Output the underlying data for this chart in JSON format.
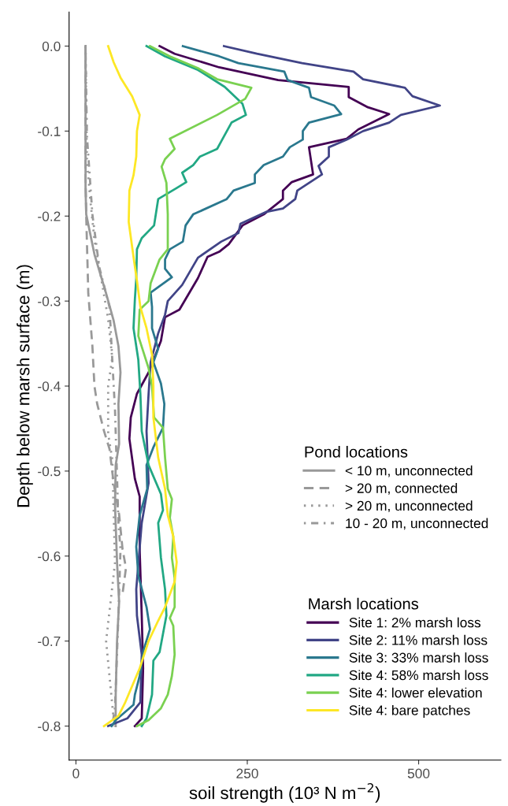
{
  "chart_data": {
    "type": "line",
    "xlabel": "soil strength (10³ N m$^{−2}$)",
    "ylabel": "Depth below marsh surface (m)",
    "legend_title": [
      "Pond locations",
      "Marsh locations"
    ],
    "legend": "bottom right",
    "grid": false,
    "marker": "none",
    "xlim": [
      -10,
      620
    ],
    "xticks": [
      0,
      250,
      500
    ],
    "ylim": [
      -0.84,
      0.04
    ],
    "yticks": [
      {
        "value": 0,
        "label": "0.0"
      },
      {
        "value": -0.1,
        "label": "-0.1"
      },
      {
        "value": -0.2,
        "label": "-0.2"
      },
      {
        "value": -0.3,
        "label": "-0.3"
      },
      {
        "value": -0.4,
        "label": "-0.4"
      },
      {
        "value": -0.5,
        "label": "-0.5"
      },
      {
        "value": -0.6,
        "label": "-0.6"
      },
      {
        "value": -0.7,
        "label": "-0.7"
      },
      {
        "value": -0.8,
        "label": "-0.8"
      }
    ],
    "series": [
      {
        "name": "< 10 m, unconnected",
        "color": "#999999",
        "line_style": "solid",
        "x": [
          14,
          14,
          14,
          15,
          27,
          44,
          55,
          62,
          65,
          62,
          63,
          58,
          57,
          60,
          63,
          60,
          58,
          58
        ],
        "values": [
          0,
          -0.075,
          -0.167,
          -0.198,
          -0.245,
          -0.291,
          -0.323,
          -0.353,
          -0.384,
          -0.421,
          -0.468,
          -0.493,
          -0.54,
          -0.608,
          -0.654,
          -0.7,
          -0.763,
          -0.8
        ]
      },
      {
        "name": "> 20 m, connected",
        "color": "#999999",
        "line_style": "dashed",
        "x": [
          14,
          14,
          15,
          17,
          18,
          24,
          27,
          31,
          41,
          49,
          55,
          63,
          68,
          73,
          68
        ],
        "values": [
          0,
          -0.15,
          -0.2,
          -0.26,
          -0.291,
          -0.353,
          -0.4,
          -0.421,
          -0.453,
          -0.474,
          -0.514,
          -0.551,
          -0.592,
          -0.614,
          -0.644
        ]
      },
      {
        "name": "> 20 m, unconnected",
        "color": "#999999",
        "line_style": "dotted",
        "x": [
          14,
          16,
          21,
          27,
          37,
          47,
          53,
          47,
          47,
          47,
          53,
          57,
          44,
          50,
          56
        ],
        "values": [
          0,
          -0.135,
          -0.181,
          -0.228,
          -0.274,
          -0.321,
          -0.367,
          -0.4,
          -0.428,
          -0.456,
          -0.486,
          -0.608,
          -0.7,
          -0.75,
          -0.8
        ]
      },
      {
        "name": "10 - 20 m, unconnected",
        "color": "#999999",
        "line_style": "dashdot",
        "x": [
          14,
          16,
          24,
          34,
          49,
          53,
          57,
          62,
          65,
          62,
          57,
          53
        ],
        "values": [
          0,
          -0.105,
          -0.198,
          -0.26,
          -0.307,
          -0.369,
          -0.428,
          -0.561,
          -0.592,
          -0.67,
          -0.778,
          -0.8
        ]
      },
      {
        "name": "Site 1: 2% marsh loss",
        "color": "#440154",
        "x": [
          122,
          144,
          209,
          295,
          398,
          398,
          426,
          457,
          412,
          395,
          340,
          346,
          315,
          302,
          302,
          274,
          243,
          223,
          209,
          192,
          178,
          151,
          130,
          124,
          106,
          89,
          80,
          78,
          86,
          93,
          93,
          96,
          98,
          96,
          86
        ],
        "values": [
          0,
          -0.009,
          -0.025,
          -0.04,
          -0.048,
          -0.06,
          -0.072,
          -0.08,
          -0.098,
          -0.109,
          -0.119,
          -0.151,
          -0.16,
          -0.17,
          -0.18,
          -0.198,
          -0.211,
          -0.233,
          -0.242,
          -0.248,
          -0.273,
          -0.31,
          -0.319,
          -0.347,
          -0.384,
          -0.409,
          -0.437,
          -0.462,
          -0.509,
          -0.53,
          -0.593,
          -0.67,
          -0.732,
          -0.791,
          -0.8
        ]
      },
      {
        "name": "Site 2: 11% marsh loss",
        "color": "#414487",
        "x": [
          216,
          264,
          330,
          405,
          419,
          480,
          491,
          531,
          474,
          457,
          419,
          395,
          369,
          369,
          354,
          359,
          323,
          320,
          302,
          278,
          240,
          237,
          212,
          178,
          155,
          134,
          130,
          120,
          109,
          106,
          103,
          106,
          96,
          88,
          89,
          96,
          94,
          75,
          47
        ],
        "values": [
          0,
          -0.009,
          -0.02,
          -0.03,
          -0.039,
          -0.049,
          -0.059,
          -0.07,
          -0.081,
          -0.09,
          -0.1,
          -0.11,
          -0.119,
          -0.13,
          -0.141,
          -0.151,
          -0.17,
          -0.18,
          -0.191,
          -0.195,
          -0.209,
          -0.22,
          -0.23,
          -0.249,
          -0.281,
          -0.3,
          -0.316,
          -0.338,
          -0.372,
          -0.409,
          -0.453,
          -0.514,
          -0.561,
          -0.639,
          -0.67,
          -0.716,
          -0.772,
          -0.791,
          -0.8
        ]
      },
      {
        "name": "Site 3: 33% marsh loss",
        "color": "#2a788e",
        "x": [
          156,
          209,
          237,
          304,
          309,
          340,
          343,
          377,
          387,
          340,
          331,
          331,
          312,
          302,
          274,
          261,
          261,
          230,
          220,
          171,
          160,
          156,
          137,
          130,
          130,
          140,
          109,
          111,
          111,
          120,
          113,
          124,
          129,
          127,
          113,
          103,
          104,
          93,
          88,
          91,
          103,
          108,
          99,
          93,
          86,
          84,
          58,
          52
        ],
        "values": [
          0,
          -0.012,
          -0.02,
          -0.03,
          -0.04,
          -0.049,
          -0.06,
          -0.07,
          -0.08,
          -0.09,
          -0.1,
          -0.11,
          -0.119,
          -0.13,
          -0.14,
          -0.151,
          -0.161,
          -0.17,
          -0.18,
          -0.198,
          -0.211,
          -0.23,
          -0.239,
          -0.251,
          -0.262,
          -0.272,
          -0.29,
          -0.307,
          -0.332,
          -0.356,
          -0.372,
          -0.397,
          -0.421,
          -0.449,
          -0.472,
          -0.493,
          -0.521,
          -0.552,
          -0.589,
          -0.623,
          -0.66,
          -0.686,
          -0.71,
          -0.741,
          -0.763,
          -0.775,
          -0.793,
          -0.8
        ]
      },
      {
        "name": "Site 4: 58% marsh loss",
        "color": "#22a884",
        "x": [
          103,
          130,
          178,
          217,
          243,
          248,
          227,
          212,
          206,
          181,
          171,
          155,
          161,
          147,
          120,
          114,
          96,
          89,
          88,
          86,
          84,
          91,
          94,
          96,
          106,
          124,
          127,
          120,
          124,
          130,
          132,
          122,
          113,
          111,
          103,
          96
        ],
        "values": [
          0,
          -0.012,
          -0.028,
          -0.048,
          -0.068,
          -0.081,
          -0.09,
          -0.112,
          -0.121,
          -0.13,
          -0.14,
          -0.149,
          -0.16,
          -0.167,
          -0.18,
          -0.211,
          -0.226,
          -0.239,
          -0.273,
          -0.298,
          -0.332,
          -0.369,
          -0.409,
          -0.453,
          -0.493,
          -0.527,
          -0.546,
          -0.561,
          -0.602,
          -0.639,
          -0.67,
          -0.713,
          -0.723,
          -0.763,
          -0.791,
          -0.8
        ]
      },
      {
        "name": "Site 4: lower elevation",
        "color": "#7ad151",
        "x": [
          108,
          137,
          178,
          206,
          256,
          247,
          206,
          137,
          144,
          130,
          125,
          132,
          134,
          134,
          122,
          109,
          106,
          93,
          91,
          106,
          111,
          114,
          127,
          130,
          134,
          140,
          137,
          142,
          140,
          144,
          144,
          137,
          142,
          144,
          140,
          134,
          124,
          106,
          89
        ],
        "values": [
          0,
          -0.012,
          -0.026,
          -0.039,
          -0.049,
          -0.062,
          -0.081,
          -0.109,
          -0.121,
          -0.133,
          -0.142,
          -0.161,
          -0.198,
          -0.239,
          -0.251,
          -0.279,
          -0.3,
          -0.31,
          -0.341,
          -0.379,
          -0.4,
          -0.437,
          -0.449,
          -0.484,
          -0.521,
          -0.533,
          -0.555,
          -0.577,
          -0.602,
          -0.626,
          -0.66,
          -0.673,
          -0.682,
          -0.716,
          -0.741,
          -0.763,
          -0.779,
          -0.793,
          -0.8
        ]
      },
      {
        "name": "Site 4: bare patches",
        "color": "#fde725",
        "x": [
          47,
          55,
          65,
          82,
          93,
          89,
          88,
          84,
          78,
          77,
          84,
          89,
          94,
          103,
          111,
          113,
          113,
          120,
          130,
          134,
          142,
          147,
          144,
          130,
          120,
          106,
          93,
          82,
          72,
          62,
          41
        ],
        "values": [
          0,
          -0.019,
          -0.037,
          -0.059,
          -0.081,
          -0.1,
          -0.13,
          -0.152,
          -0.17,
          -0.207,
          -0.248,
          -0.276,
          -0.307,
          -0.332,
          -0.363,
          -0.4,
          -0.437,
          -0.484,
          -0.521,
          -0.552,
          -0.577,
          -0.607,
          -0.63,
          -0.66,
          -0.676,
          -0.7,
          -0.732,
          -0.753,
          -0.772,
          -0.788,
          -0.8
        ]
      }
    ]
  }
}
